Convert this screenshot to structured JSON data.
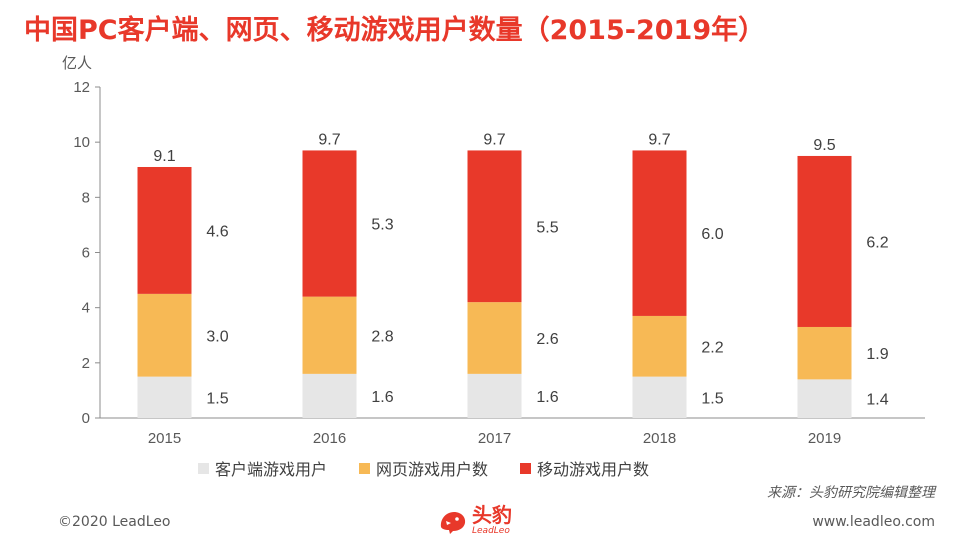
{
  "title": "中国PC客户端、网页、移动游戏用户数量（2015-2019年）",
  "source": "来源：头豹研究院编辑整理",
  "copyright": "©2020 LeadLeo",
  "website": "www.leadleo.com",
  "logo": {
    "cn": "头豹",
    "en": "LeadLeo"
  },
  "chart_data": {
    "type": "bar",
    "stacked": true,
    "categories": [
      "2015",
      "2016",
      "2017",
      "2018",
      "2019"
    ],
    "series": [
      {
        "name": "客户端游戏用户",
        "values": [
          1.5,
          1.6,
          1.6,
          1.5,
          1.4
        ],
        "color": "#e6e6e6"
      },
      {
        "name": "网页游戏用户数",
        "values": [
          3.0,
          2.8,
          2.6,
          2.2,
          1.9
        ],
        "color": "#f7b955"
      },
      {
        "name": "移动游戏用户数",
        "values": [
          4.6,
          5.3,
          5.5,
          6.0,
          6.2
        ],
        "color": "#e8392a"
      }
    ],
    "totals": [
      9.1,
      9.7,
      9.7,
      9.7,
      9.5
    ],
    "ylabel": "亿人",
    "ylim": [
      0,
      12
    ],
    "yticks": [
      0,
      2,
      4,
      6,
      8,
      10,
      12
    ],
    "grid": false,
    "legend_position": "bottom"
  }
}
